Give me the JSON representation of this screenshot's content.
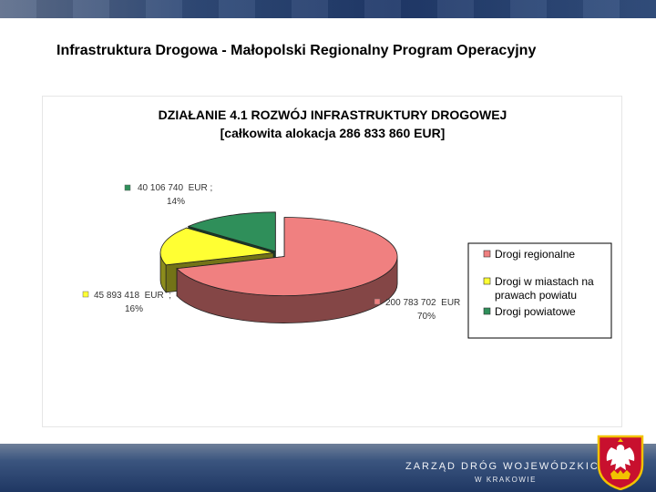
{
  "slide": {
    "title": "Infrastruktura Drogowa - Małopolski Regionalny Program Operacyjny"
  },
  "footer": {
    "line1": "ZARZĄD DRÓG WOJEWÓDZKICH",
    "line2": "W KRAKOWIE"
  },
  "colors": {
    "top_bar": "#2f4a78",
    "footer": "#2c4570"
  },
  "chart_data": {
    "type": "pie",
    "title": "DZIAŁANIE 4.1 ROZWÓJ INFRASTRUKTURY DROGOWEJ",
    "subtitle": "[całkowita alokacja 286 833 860 EUR]",
    "legend_position": "right",
    "three_d": true,
    "slices": [
      {
        "name": "Drogi regionalne",
        "value": 200783702,
        "value_label": "200 783 702  EUR",
        "percent_label": "70%",
        "color": "#f08080"
      },
      {
        "name": "Drogi w miastach na prawach powiatu",
        "value": 45893418,
        "value_label": "45 893 418  EUR  ;",
        "percent_label": "16%",
        "color": "#ffff33"
      },
      {
        "name": "Drogi powiatowe",
        "value": 40106740,
        "value_label": "40 106 740  EUR ;",
        "percent_label": "14%",
        "color": "#2f8f5a"
      }
    ],
    "legend": {
      "items": [
        {
          "line1": "Drogi regionalne",
          "line2": ""
        },
        {
          "line1": "Drogi w miastach na",
          "line2": "prawach powiatu"
        },
        {
          "line1": "Drogi powiatowe",
          "line2": ""
        }
      ]
    }
  }
}
